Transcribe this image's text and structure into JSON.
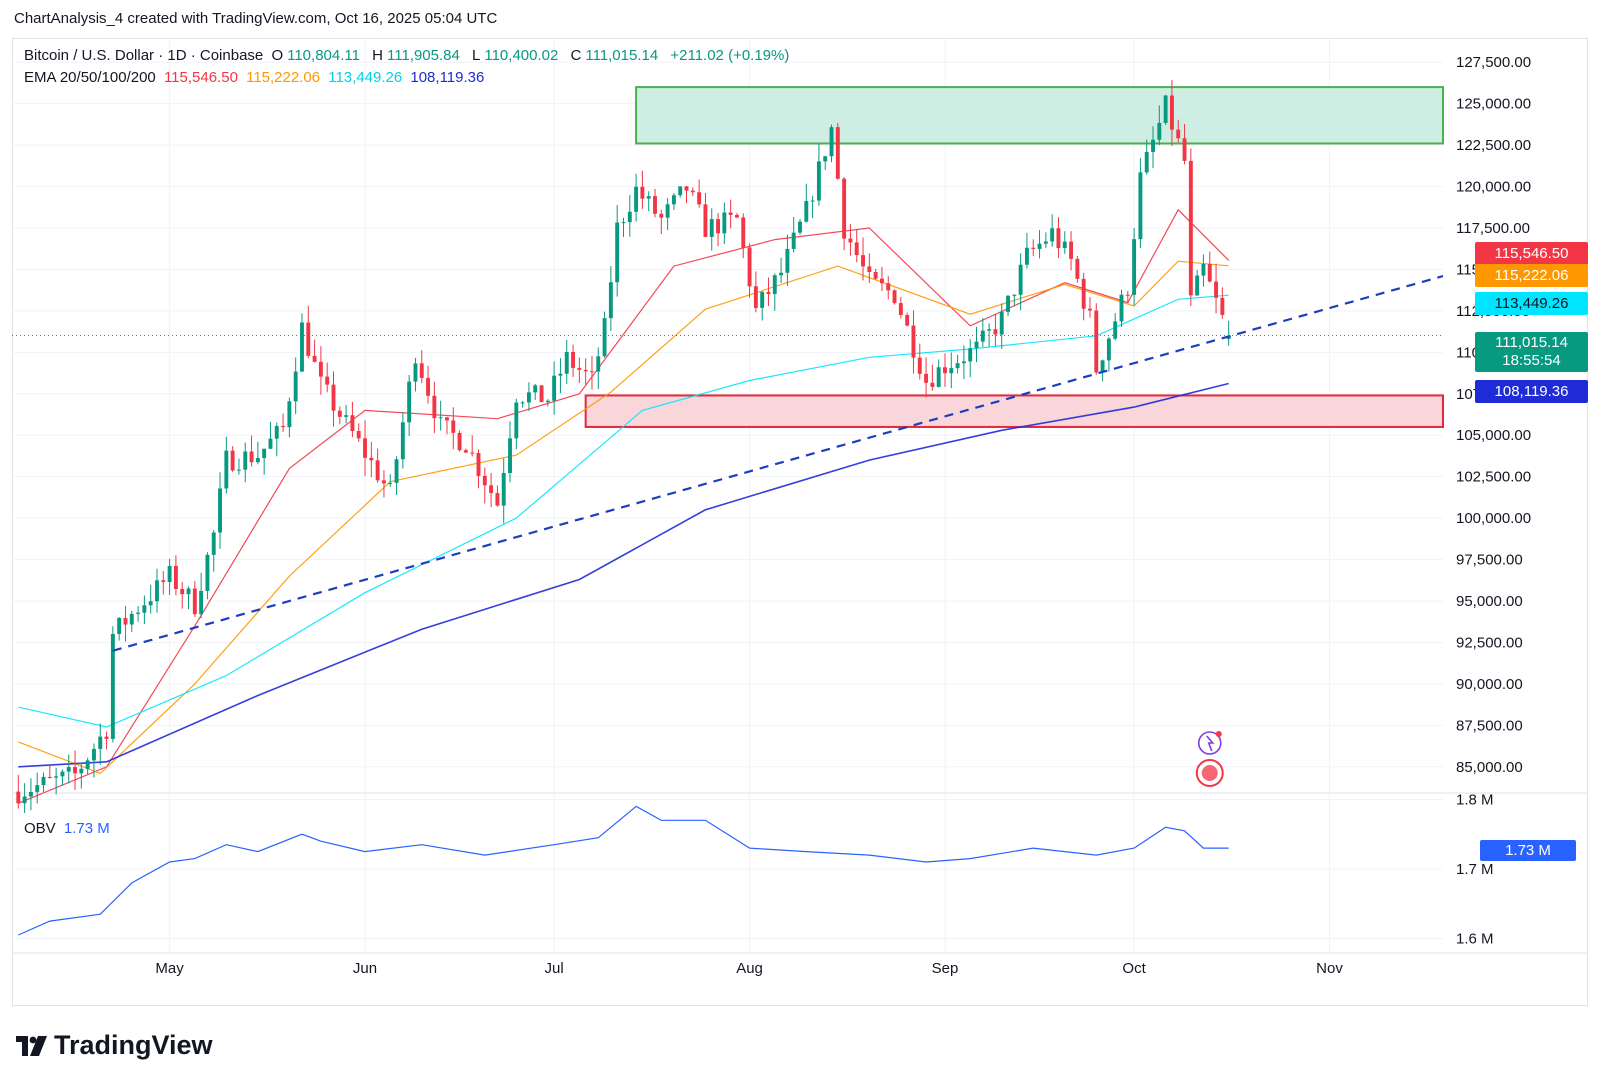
{
  "caption": "ChartAnalysis_4 created with TradingView.com, Oct 16, 2025 05:04 UTC",
  "legend": {
    "symbol": "Bitcoin / U.S. Dollar · 1D · Coinbase",
    "open_label": "O",
    "open": "110,804.11",
    "high_label": "H",
    "high": "111,905.84",
    "low_label": "L",
    "low": "110,400.02",
    "close_label": "C",
    "close": "111,015.14",
    "change": "+211.02 (+0.19%)",
    "ema_label": "EMA 20/50/100/200",
    "ema20": "115,546.50",
    "ema50": "115,222.06",
    "ema100": "113,449.26",
    "ema200": "108,119.36",
    "obv_label": "OBV",
    "obv_value": "1.73 M"
  },
  "price_tags": {
    "ema20": "115,546.50",
    "ema50": "115,222.06",
    "ema100": "113,449.26",
    "last": "111,015.14",
    "countdown": "18:55:54",
    "ema200": "108,119.36",
    "obv": "1.73 M"
  },
  "colors": {
    "up": "#089981",
    "down": "#f23645",
    "ema20": "#f23645",
    "ema50": "#ff9800",
    "ema100": "#00e5ff",
    "ema200": "#1e2bd6",
    "obv": "#2962ff",
    "trendline": "#1b3fbf",
    "resistance_fill": "#cfeee3",
    "resistance_stroke": "#4caf50",
    "support_fill": "#f9d6d9",
    "support_stroke": "#e3273c"
  },
  "logo": {
    "text": "TradingView"
  },
  "chart_data": {
    "type": "candlestick",
    "title": "Bitcoin / U.S. Dollar · 1D · Coinbase",
    "timeframe": "1D",
    "x_ticks": [
      "May",
      "Jun",
      "Jul",
      "Aug",
      "Sep",
      "Oct",
      "Nov"
    ],
    "x_tick_dates": [
      "2025-05-01",
      "2025-06-01",
      "2025-07-01",
      "2025-08-01",
      "2025-09-01",
      "2025-10-01",
      "2025-11-01"
    ],
    "x_range": [
      "2025-04-06",
      "2025-11-19"
    ],
    "y_ticks": [
      85000,
      87500,
      90000,
      92500,
      95000,
      97500,
      100000,
      102500,
      105000,
      107500,
      110000,
      112500,
      115000,
      117500,
      120000,
      122500,
      125000,
      127500
    ],
    "y_range": [
      83600,
      128600
    ],
    "price_path": [
      [
        "2025-04-07",
        83500
      ],
      [
        "2025-04-16",
        84500
      ],
      [
        "2025-04-21",
        87300
      ],
      [
        "2025-04-22",
        93000
      ],
      [
        "2025-04-26",
        94600
      ],
      [
        "2025-05-01",
        96500
      ],
      [
        "2025-05-05",
        94800
      ],
      [
        "2025-05-08",
        99000
      ],
      [
        "2025-05-10",
        103500
      ],
      [
        "2025-05-15",
        103800
      ],
      [
        "2025-05-19",
        105400
      ],
      [
        "2025-05-22",
        111500
      ],
      [
        "2025-05-25",
        108000
      ],
      [
        "2025-05-31",
        104500
      ],
      [
        "2025-06-05",
        101500
      ],
      [
        "2025-06-09",
        110000
      ],
      [
        "2025-06-13",
        105500
      ],
      [
        "2025-06-17",
        104500
      ],
      [
        "2025-06-22",
        100900
      ],
      [
        "2025-06-25",
        107500
      ],
      [
        "2025-06-30",
        107200
      ],
      [
        "2025-07-03",
        109600
      ],
      [
        "2025-07-07",
        108300
      ],
      [
        "2025-07-09",
        111400
      ],
      [
        "2025-07-11",
        117500
      ],
      [
        "2025-07-14",
        119800
      ],
      [
        "2025-07-18",
        118000
      ],
      [
        "2025-07-22",
        119900
      ],
      [
        "2025-07-25",
        117500
      ],
      [
        "2025-07-30",
        118000
      ],
      [
        "2025-08-02",
        112500
      ],
      [
        "2025-08-06",
        114800
      ],
      [
        "2025-08-10",
        118500
      ],
      [
        "2025-08-14",
        123500
      ],
      [
        "2025-08-16",
        117500
      ],
      [
        "2025-08-20",
        114200
      ],
      [
        "2025-08-24",
        113500
      ],
      [
        "2025-08-29",
        108300
      ],
      [
        "2025-09-01",
        109200
      ],
      [
        "2025-09-06",
        110200
      ],
      [
        "2025-09-10",
        112000
      ],
      [
        "2025-09-14",
        115800
      ],
      [
        "2025-09-18",
        117200
      ],
      [
        "2025-09-21",
        115500
      ],
      [
        "2025-09-24",
        112000
      ],
      [
        "2025-09-25",
        109000
      ],
      [
        "2025-09-30",
        114000
      ],
      [
        "2025-10-02",
        120500
      ],
      [
        "2025-10-06",
        124800
      ],
      [
        "2025-10-09",
        121500
      ],
      [
        "2025-10-10",
        113000
      ],
      [
        "2025-10-12",
        115000
      ],
      [
        "2025-10-14",
        113000
      ],
      [
        "2025-10-16",
        111015
      ]
    ],
    "last_candle": {
      "date": "2025-10-16",
      "open": 110804.11,
      "high": 111905.84,
      "low": 110400.02,
      "close": 111015.14,
      "change": 211.02,
      "change_pct": 0.19
    },
    "series": [
      {
        "name": "EMA 20",
        "last": 115546.5,
        "points": [
          [
            "2025-04-07",
            82800
          ],
          [
            "2025-04-21",
            85000
          ],
          [
            "2025-05-05",
            93500
          ],
          [
            "2025-05-20",
            103000
          ],
          [
            "2025-06-01",
            106500
          ],
          [
            "2025-06-22",
            106000
          ],
          [
            "2025-07-05",
            107500
          ],
          [
            "2025-07-20",
            115200
          ],
          [
            "2025-08-05",
            116800
          ],
          [
            "2025-08-20",
            117500
          ],
          [
            "2025-09-05",
            111600
          ],
          [
            "2025-09-20",
            114200
          ],
          [
            "2025-09-30",
            113000
          ],
          [
            "2025-10-08",
            118600
          ],
          [
            "2025-10-16",
            115546.5
          ]
        ]
      },
      {
        "name": "EMA 50",
        "last": 115222.06,
        "points": [
          [
            "2025-04-07",
            86500
          ],
          [
            "2025-04-20",
            84600
          ],
          [
            "2025-05-05",
            90000
          ],
          [
            "2025-05-20",
            96500
          ],
          [
            "2025-06-05",
            102200
          ],
          [
            "2025-06-25",
            103800
          ],
          [
            "2025-07-10",
            107600
          ],
          [
            "2025-07-25",
            112600
          ],
          [
            "2025-08-15",
            115200
          ],
          [
            "2025-09-05",
            112300
          ],
          [
            "2025-09-20",
            114100
          ],
          [
            "2025-10-01",
            112800
          ],
          [
            "2025-10-08",
            115500
          ],
          [
            "2025-10-16",
            115222.06
          ]
        ]
      },
      {
        "name": "EMA 100",
        "last": 113449.26,
        "points": [
          [
            "2025-04-07",
            88600
          ],
          [
            "2025-04-21",
            87400
          ],
          [
            "2025-05-10",
            90500
          ],
          [
            "2025-06-01",
            95500
          ],
          [
            "2025-06-25",
            100000
          ],
          [
            "2025-07-15",
            106500
          ],
          [
            "2025-08-01",
            108300
          ],
          [
            "2025-08-20",
            109700
          ],
          [
            "2025-09-05",
            110200
          ],
          [
            "2025-09-25",
            111000
          ],
          [
            "2025-10-08",
            113200
          ],
          [
            "2025-10-16",
            113449.26
          ]
        ]
      },
      {
        "name": "EMA 200",
        "last": 108119.36,
        "points": [
          [
            "2025-04-07",
            85000
          ],
          [
            "2025-04-21",
            85300
          ],
          [
            "2025-05-15",
            89300
          ],
          [
            "2025-06-10",
            93300
          ],
          [
            "2025-07-05",
            96300
          ],
          [
            "2025-07-25",
            100500
          ],
          [
            "2025-08-20",
            103500
          ],
          [
            "2025-09-10",
            105300
          ],
          [
            "2025-10-01",
            106700
          ],
          [
            "2025-10-16",
            108119.36
          ]
        ]
      }
    ],
    "trendline": {
      "style": "dashed",
      "from": [
        "2025-04-22",
        92000
      ],
      "to": [
        "2025-11-19",
        114600
      ]
    },
    "zones": [
      {
        "kind": "resistance",
        "from": "2025-07-14",
        "to": "2025-11-19",
        "y_low": 122600,
        "y_high": 126000
      },
      {
        "kind": "support",
        "from": "2025-07-06",
        "to": "2025-11-19",
        "y_low": 105500,
        "y_high": 107400
      }
    ],
    "obv": {
      "name": "OBV",
      "last": 1.73,
      "unit": "M",
      "y_ticks": [
        1.6,
        1.7,
        1.8
      ],
      "y_tick_labels": [
        "1.6 M",
        "1.7 M",
        "1.8 M"
      ],
      "y_range": [
        1.595,
        1.805
      ],
      "points": [
        [
          "2025-04-07",
          1.605
        ],
        [
          "2025-04-12",
          1.625
        ],
        [
          "2025-04-20",
          1.635
        ],
        [
          "2025-04-25",
          1.68
        ],
        [
          "2025-05-01",
          1.71
        ],
        [
          "2025-05-05",
          1.715
        ],
        [
          "2025-05-10",
          1.735
        ],
        [
          "2025-05-15",
          1.725
        ],
        [
          "2025-05-22",
          1.75
        ],
        [
          "2025-05-25",
          1.74
        ],
        [
          "2025-06-01",
          1.725
        ],
        [
          "2025-06-10",
          1.735
        ],
        [
          "2025-06-20",
          1.72
        ],
        [
          "2025-07-01",
          1.735
        ],
        [
          "2025-07-08",
          1.745
        ],
        [
          "2025-07-14",
          1.79
        ],
        [
          "2025-07-18",
          1.77
        ],
        [
          "2025-07-25",
          1.77
        ],
        [
          "2025-08-01",
          1.73
        ],
        [
          "2025-08-10",
          1.725
        ],
        [
          "2025-08-20",
          1.72
        ],
        [
          "2025-08-29",
          1.71
        ],
        [
          "2025-09-05",
          1.715
        ],
        [
          "2025-09-15",
          1.73
        ],
        [
          "2025-09-25",
          1.72
        ],
        [
          "2025-10-01",
          1.73
        ],
        [
          "2025-10-06",
          1.76
        ],
        [
          "2025-10-09",
          1.755
        ],
        [
          "2025-10-12",
          1.73
        ],
        [
          "2025-10-16",
          1.73
        ]
      ]
    }
  }
}
